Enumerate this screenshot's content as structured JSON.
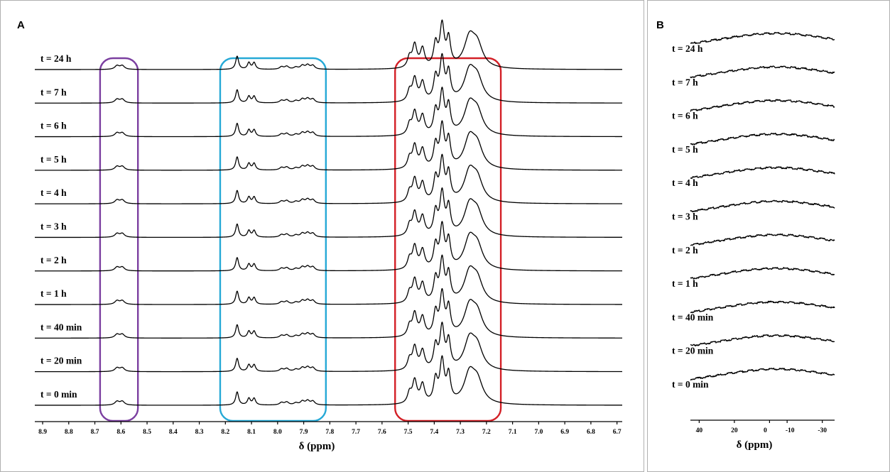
{
  "chart_data": [
    {
      "panel": "A",
      "type": "line",
      "xlabel": "δ (ppm)",
      "x_reversed": true,
      "xlim": [
        8.93,
        6.68
      ],
      "x_ticks": [
        "8.9",
        "8.8",
        "8.7",
        "8.6",
        "8.5",
        "8.4",
        "8.3",
        "8.2",
        "8.1",
        "8.0",
        "7.9",
        "7.8",
        "7.7",
        "7.6",
        "7.5",
        "7.4",
        "7.3",
        "7.2",
        "7.1",
        "7.0",
        "6.9",
        "6.8",
        "6.7"
      ],
      "series": [
        {
          "name": "t = 24 h"
        },
        {
          "name": "t = 7 h"
        },
        {
          "name": "t = 6 h"
        },
        {
          "name": "t = 5 h"
        },
        {
          "name": "t = 4 h"
        },
        {
          "name": "t = 3 h"
        },
        {
          "name": "t = 2 h"
        },
        {
          "name": "t = 1 h"
        },
        {
          "name": "t = 40 min"
        },
        {
          "name": "t = 20 min"
        },
        {
          "name": "t = 0 min"
        }
      ],
      "peaks": [
        {
          "x": 8.615,
          "h": 0.09,
          "w": 0.0045
        },
        {
          "x": 8.595,
          "h": 0.09,
          "w": 0.0045
        },
        {
          "x": 8.155,
          "h": 0.32,
          "w": 0.003
        },
        {
          "x": 8.11,
          "h": 0.16,
          "w": 0.003
        },
        {
          "x": 8.09,
          "h": 0.16,
          "w": 0.003
        },
        {
          "x": 7.985,
          "h": 0.06,
          "w": 0.004
        },
        {
          "x": 7.965,
          "h": 0.07,
          "w": 0.004
        },
        {
          "x": 7.93,
          "h": 0.05,
          "w": 0.004
        },
        {
          "x": 7.905,
          "h": 0.09,
          "w": 0.004
        },
        {
          "x": 7.885,
          "h": 0.1,
          "w": 0.004
        },
        {
          "x": 7.865,
          "h": 0.09,
          "w": 0.004
        },
        {
          "x": 7.495,
          "h": 0.25,
          "w": 0.004
        },
        {
          "x": 7.475,
          "h": 0.55,
          "w": 0.0045
        },
        {
          "x": 7.445,
          "h": 0.45,
          "w": 0.0045
        },
        {
          "x": 7.395,
          "h": 0.55,
          "w": 0.004
        },
        {
          "x": 7.37,
          "h": 1.0,
          "w": 0.0045
        },
        {
          "x": 7.345,
          "h": 0.65,
          "w": 0.004
        },
        {
          "x": 7.265,
          "h": 0.7,
          "w": 0.011
        },
        {
          "x": 7.235,
          "h": 0.5,
          "w": 0.011
        }
      ],
      "highlight_regions": [
        {
          "x": [
            8.68,
            8.535
          ],
          "color": "#7B3FA0"
        },
        {
          "x": [
            8.22,
            7.815
          ],
          "color": "#26A9D6"
        },
        {
          "x": [
            7.55,
            7.145
          ],
          "color": "#D32027"
        }
      ]
    },
    {
      "panel": "B",
      "type": "line",
      "xlabel": "δ (ppm)",
      "x_reversed": true,
      "xlim": [
        45,
        -37
      ],
      "x_ticks": [
        "40",
        "20",
        "0",
        "-10",
        "-30"
      ],
      "x_tick_values": [
        40,
        20,
        0,
        -10,
        -30
      ],
      "series": [
        {
          "name": "t = 24 h"
        },
        {
          "name": "t = 7 h"
        },
        {
          "name": "t = 6 h"
        },
        {
          "name": "t = 5 h"
        },
        {
          "name": "t = 4 h"
        },
        {
          "name": "t = 3 h"
        },
        {
          "name": "t = 2 h"
        },
        {
          "name": "t = 1 h"
        },
        {
          "name": "t = 40 min"
        },
        {
          "name": "t = 20 min"
        },
        {
          "name": "t = 0 min"
        }
      ],
      "peaks": [
        {
          "x": -4,
          "h": 1.0,
          "w": 0.7
        }
      ]
    }
  ],
  "panels": {
    "a_label": "A",
    "b_label": "B"
  }
}
